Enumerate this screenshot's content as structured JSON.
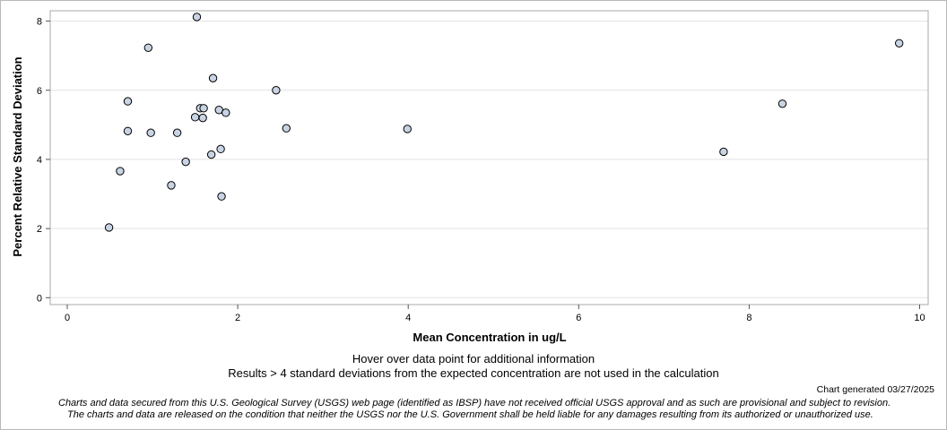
{
  "chart_data": {
    "type": "scatter",
    "title": "",
    "xlabel": "Mean Concentration in ug/L",
    "ylabel": "Percent Relative Standard Deviation",
    "xlim": [
      -0.2,
      10.1
    ],
    "ylim": [
      -0.2,
      8.3
    ],
    "x_ticks": [
      0,
      2,
      4,
      6,
      8,
      10
    ],
    "y_ticks": [
      0,
      2,
      4,
      6,
      8
    ],
    "grid": "horizontal",
    "marker": {
      "shape": "circle",
      "fill": "#c8d4e4",
      "stroke": "#000000"
    },
    "points": [
      {
        "x": 0.49,
        "y": 2.03
      },
      {
        "x": 0.62,
        "y": 3.66
      },
      {
        "x": 0.71,
        "y": 5.68
      },
      {
        "x": 0.71,
        "y": 4.82
      },
      {
        "x": 0.95,
        "y": 7.23
      },
      {
        "x": 0.98,
        "y": 4.77
      },
      {
        "x": 1.22,
        "y": 3.25
      },
      {
        "x": 1.29,
        "y": 4.77
      },
      {
        "x": 1.39,
        "y": 3.93
      },
      {
        "x": 1.5,
        "y": 5.22
      },
      {
        "x": 1.52,
        "y": 8.12
      },
      {
        "x": 1.56,
        "y": 5.48
      },
      {
        "x": 1.59,
        "y": 5.2
      },
      {
        "x": 1.6,
        "y": 5.48
      },
      {
        "x": 1.69,
        "y": 4.14
      },
      {
        "x": 1.71,
        "y": 6.35
      },
      {
        "x": 1.78,
        "y": 5.43
      },
      {
        "x": 1.8,
        "y": 4.3
      },
      {
        "x": 1.81,
        "y": 2.93
      },
      {
        "x": 1.86,
        "y": 5.35
      },
      {
        "x": 2.45,
        "y": 6.0
      },
      {
        "x": 2.57,
        "y": 4.9
      },
      {
        "x": 3.99,
        "y": 4.88
      },
      {
        "x": 7.7,
        "y": 4.22
      },
      {
        "x": 8.39,
        "y": 5.61
      },
      {
        "x": 9.76,
        "y": 7.36
      }
    ]
  },
  "notes": {
    "hover": "Hover over data point for additional information",
    "results": "Results > 4 standard deviations from the expected concentration are not used in the calculation"
  },
  "generated": "Chart generated 03/27/2025",
  "disclaimer": {
    "line1": "Charts and data secured from this U.S. Geological Survey (USGS) web page (identified as IBSP) have not received official USGS approval and as such are provisional and subject to revision.",
    "line2": "The charts and data are released on the condition that neither the USGS nor the U.S. Government shall be held liable for any damages resulting from its authorized or unauthorized use."
  }
}
